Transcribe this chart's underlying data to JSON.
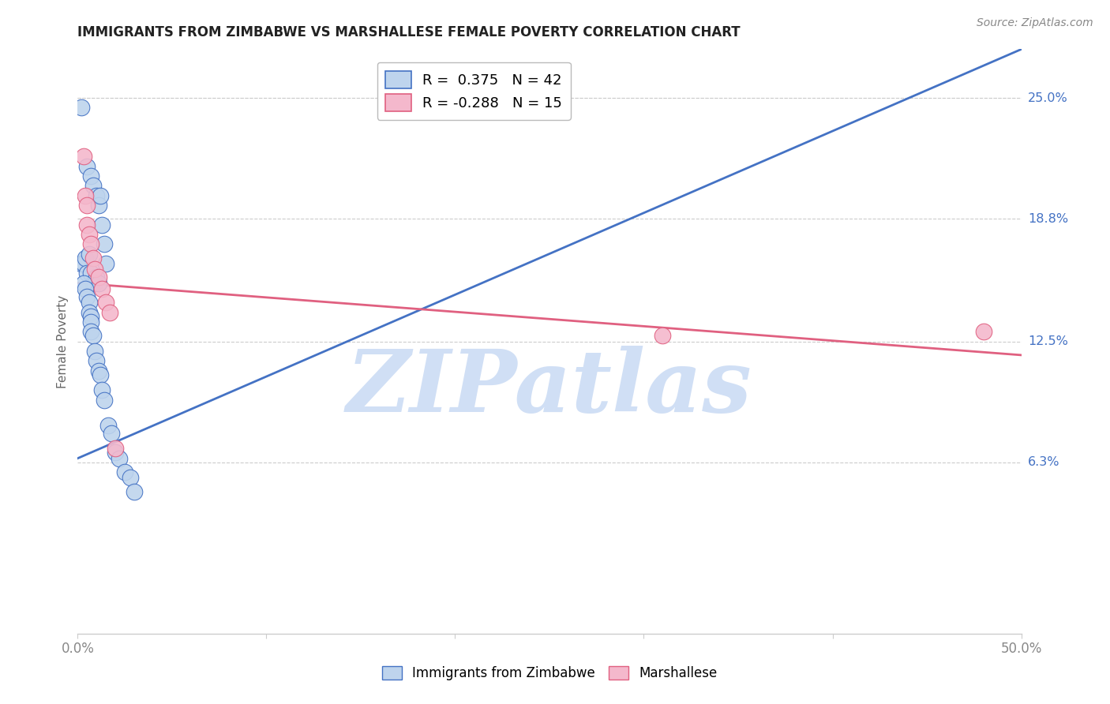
{
  "title": "IMMIGRANTS FROM ZIMBABWE VS MARSHALLESE FEMALE POVERTY CORRELATION CHART",
  "source": "Source: ZipAtlas.com",
  "ylabel": "Female Poverty",
  "series1_label": "Immigrants from Zimbabwe",
  "series2_label": "Marshallese",
  "series1_color": "#bed4ed",
  "series2_color": "#f4b8cc",
  "line1_color": "#4472c4",
  "line2_color": "#e06080",
  "background_color": "#ffffff",
  "watermark": "ZIPatlas",
  "watermark_color": "#d0dff5",
  "legend_label1": "R =  0.375   N = 42",
  "legend_label2": "R = -0.288   N = 15",
  "xmin": 0.0,
  "xmax": 0.5,
  "ymin": -0.025,
  "ymax": 0.275,
  "ytick_vals": [
    0.25,
    0.188,
    0.125,
    0.063
  ],
  "ytick_labels": [
    "25.0%",
    "18.8%",
    "12.5%",
    "6.3%"
  ],
  "xtick_vals": [
    0.0,
    0.1,
    0.2,
    0.3,
    0.4,
    0.5
  ],
  "xtick_labels": [
    "0.0%",
    "",
    "",
    "",
    "",
    "50.0%"
  ],
  "line1_x0": 0.0,
  "line1_y0": 0.065,
  "line1_x1": 0.5,
  "line1_y1": 0.275,
  "line2_x0": 0.0,
  "line2_y0": 0.155,
  "line2_x1": 0.5,
  "line2_y1": 0.118,
  "s1_x": [
    0.002,
    0.005,
    0.007,
    0.008,
    0.01,
    0.011,
    0.012,
    0.013,
    0.014,
    0.015,
    0.002,
    0.003,
    0.004,
    0.005,
    0.006,
    0.007,
    0.008,
    0.009,
    0.01,
    0.011,
    0.003,
    0.004,
    0.005,
    0.006,
    0.006,
    0.007,
    0.007,
    0.007,
    0.008,
    0.009,
    0.01,
    0.011,
    0.012,
    0.013,
    0.014,
    0.016,
    0.018,
    0.02,
    0.022,
    0.025,
    0.028,
    0.03
  ],
  "s1_y": [
    0.245,
    0.215,
    0.21,
    0.205,
    0.2,
    0.195,
    0.2,
    0.185,
    0.175,
    0.165,
    0.165,
    0.165,
    0.168,
    0.16,
    0.17,
    0.16,
    0.155,
    0.155,
    0.158,
    0.155,
    0.155,
    0.152,
    0.148,
    0.145,
    0.14,
    0.138,
    0.135,
    0.13,
    0.128,
    0.12,
    0.115,
    0.11,
    0.108,
    0.1,
    0.095,
    0.082,
    0.078,
    0.068,
    0.065,
    0.058,
    0.055,
    0.048
  ],
  "s2_x": [
    0.003,
    0.004,
    0.005,
    0.005,
    0.006,
    0.007,
    0.008,
    0.009,
    0.011,
    0.013,
    0.015,
    0.017,
    0.02,
    0.31,
    0.48
  ],
  "s2_y": [
    0.22,
    0.2,
    0.195,
    0.185,
    0.18,
    0.175,
    0.168,
    0.162,
    0.158,
    0.152,
    0.145,
    0.14,
    0.07,
    0.128,
    0.13
  ]
}
